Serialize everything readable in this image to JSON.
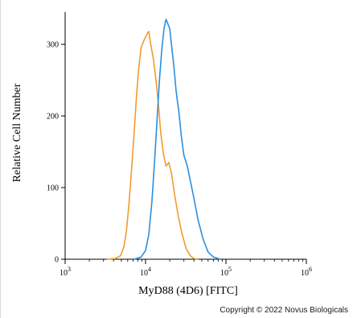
{
  "chart_data": {
    "type": "line",
    "xlabel": "MyD88 (4D6) [FITC]",
    "ylabel": "Relative Cell Number",
    "xscale": "log",
    "xlim": [
      1000,
      1000000
    ],
    "ylim": [
      0,
      345
    ],
    "x_ticks": [
      {
        "value": 1000,
        "base": "10",
        "exp": "3"
      },
      {
        "value": 10000,
        "base": "10",
        "exp": "4"
      },
      {
        "value": 100000,
        "base": "10",
        "exp": "5"
      },
      {
        "value": 1000000,
        "base": "10",
        "exp": "6"
      }
    ],
    "y_ticks": [
      0,
      100,
      200,
      300
    ],
    "grid": false,
    "series": [
      {
        "color": "#f39a2e",
        "points": [
          [
            3300,
            0
          ],
          [
            4200,
            1
          ],
          [
            4900,
            5
          ],
          [
            5400,
            18
          ],
          [
            5800,
            40
          ],
          [
            6200,
            75
          ],
          [
            6700,
            125
          ],
          [
            7200,
            175
          ],
          [
            7700,
            225
          ],
          [
            8200,
            265
          ],
          [
            8800,
            295
          ],
          [
            9500,
            305
          ],
          [
            10500,
            315
          ],
          [
            11000,
            318
          ],
          [
            11500,
            302
          ],
          [
            12500,
            280
          ],
          [
            13500,
            250
          ],
          [
            14500,
            215
          ],
          [
            15500,
            175
          ],
          [
            16800,
            145
          ],
          [
            18000,
            130
          ],
          [
            19500,
            135
          ],
          [
            21000,
            120
          ],
          [
            23000,
            90
          ],
          [
            25500,
            60
          ],
          [
            28500,
            35
          ],
          [
            32000,
            15
          ],
          [
            36000,
            5
          ],
          [
            40000,
            1
          ],
          [
            45000,
            0
          ]
        ]
      },
      {
        "color": "#2b8fe0",
        "points": [
          [
            7200,
            0
          ],
          [
            8800,
            3
          ],
          [
            10000,
            12
          ],
          [
            11000,
            35
          ],
          [
            12000,
            80
          ],
          [
            13000,
            140
          ],
          [
            14000,
            200
          ],
          [
            15000,
            255
          ],
          [
            16000,
            295
          ],
          [
            17000,
            322
          ],
          [
            18000,
            335
          ],
          [
            19000,
            328
          ],
          [
            20000,
            322
          ],
          [
            21000,
            300
          ],
          [
            22500,
            270
          ],
          [
            24000,
            235
          ],
          [
            26000,
            205
          ],
          [
            28000,
            170
          ],
          [
            30000,
            145
          ],
          [
            33000,
            130
          ],
          [
            36000,
            110
          ],
          [
            40000,
            85
          ],
          [
            45000,
            55
          ],
          [
            52000,
            28
          ],
          [
            60000,
            10
          ],
          [
            70000,
            3
          ],
          [
            85000,
            0
          ]
        ]
      }
    ]
  },
  "copyright": "Copyright © 2022 Novus Biologicals"
}
